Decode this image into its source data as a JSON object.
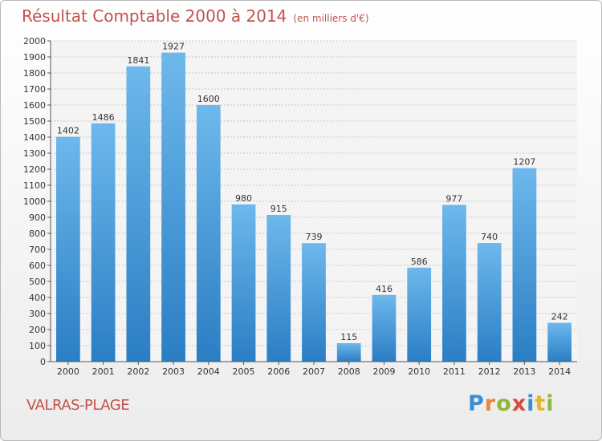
{
  "title": "Résultat Comptable 2000 à 2014",
  "subtitle": "(en milliers d'€)",
  "commune": "VALRAS-PLAGE",
  "logo": {
    "letters": [
      {
        "char": "P",
        "color": "#3b8fd1"
      },
      {
        "char": "r",
        "color": "#e8863b"
      },
      {
        "char": "o",
        "color": "#8cb83c"
      },
      {
        "char": "x",
        "color": "#d84a3a"
      },
      {
        "char": "i",
        "color": "#3b8fd1"
      },
      {
        "char": "t",
        "color": "#e6b52c"
      },
      {
        "char": "i",
        "color": "#8cb83c"
      }
    ]
  },
  "colors": {
    "bar_top": "#6db8ec",
    "bar_bottom": "#2b7ec4",
    "text": "#c0524e"
  },
  "chart_data": {
    "type": "bar",
    "categories": [
      "2000",
      "2001",
      "2002",
      "2003",
      "2004",
      "2005",
      "2006",
      "2007",
      "2008",
      "2009",
      "2010",
      "2011",
      "2012",
      "2013",
      "2014"
    ],
    "values": [
      1402,
      1486,
      1841,
      1927,
      1600,
      980,
      915,
      739,
      115,
      416,
      586,
      977,
      740,
      1207,
      242
    ],
    "ylim": [
      0,
      2000
    ],
    "yticks": [
      0,
      100,
      200,
      300,
      400,
      500,
      600,
      700,
      800,
      900,
      1000,
      1100,
      1200,
      1300,
      1400,
      1500,
      1600,
      1700,
      1800,
      1900,
      2000
    ],
    "grid": true,
    "legend": "none"
  }
}
